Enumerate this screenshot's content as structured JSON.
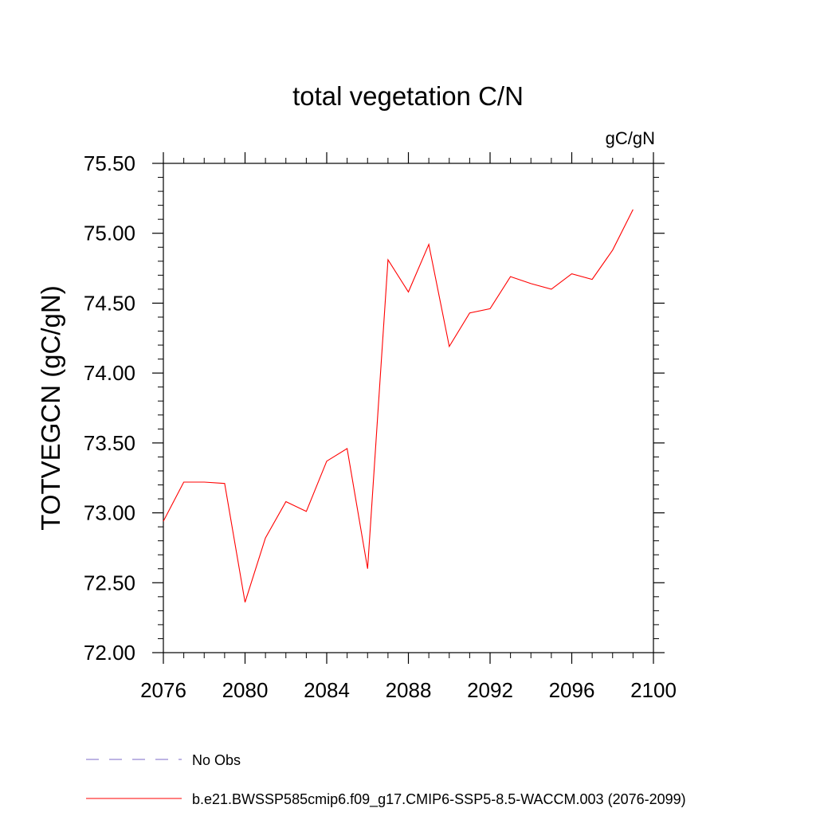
{
  "chart_data": {
    "type": "line",
    "title": "total vegetation C/N",
    "units_label": "gC/gN",
    "ylabel": "TOTVEGCN  (gC/gN)",
    "xlabel": "",
    "xlim": [
      2076,
      2100
    ],
    "ylim": [
      72.0,
      75.5
    ],
    "x_ticks": [
      "2076",
      "2080",
      "2084",
      "2088",
      "2092",
      "2096",
      "2100"
    ],
    "y_ticks": [
      "72.00",
      "72.50",
      "73.00",
      "73.50",
      "74.00",
      "74.50",
      "75.00",
      "75.50"
    ],
    "grid": false,
    "legend_position": "bottom-left",
    "series": [
      {
        "name": "b.e21.BWSSP585cmip6.f09_g17.CMIP6-SSP5-8.5-WACCM.003 (2076-2099)",
        "color": "#ff0000",
        "style": "solid",
        "x": [
          2076,
          2077,
          2078,
          2079,
          2080,
          2081,
          2082,
          2083,
          2084,
          2085,
          2086,
          2087,
          2088,
          2089,
          2090,
          2091,
          2092,
          2093,
          2094,
          2095,
          2096,
          2097,
          2098,
          2099
        ],
        "y": [
          72.94,
          73.22,
          73.22,
          73.21,
          72.36,
          72.82,
          73.08,
          73.01,
          73.37,
          73.46,
          72.6,
          74.81,
          74.58,
          74.92,
          74.19,
          74.43,
          74.46,
          74.69,
          74.64,
          74.6,
          74.71,
          74.67,
          74.88,
          75.17
        ]
      }
    ],
    "legend": [
      {
        "label": "No Obs",
        "color": "#7b68c8",
        "style": "dashed"
      },
      {
        "label": "b.e21.BWSSP585cmip6.f09_g17.CMIP6-SSP5-8.5-WACCM.003 (2076-2099)",
        "color": "#ff0000",
        "style": "solid"
      }
    ]
  }
}
